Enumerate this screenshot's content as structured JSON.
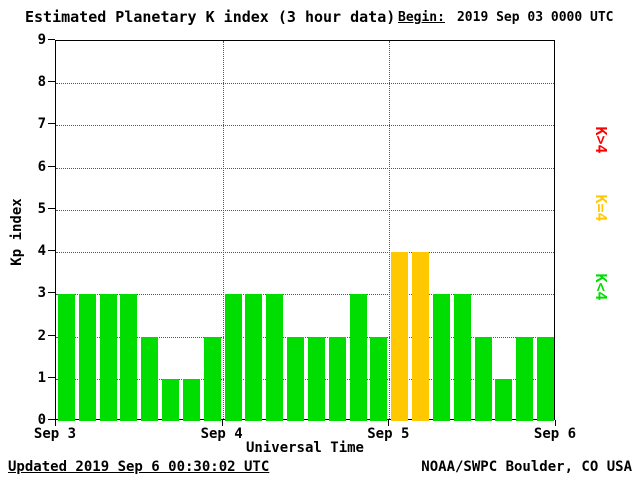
{
  "title": "Estimated Planetary K index (3 hour data)",
  "begin_label": "Begin:",
  "begin_value": "2019 Sep 03 0000 UTC",
  "footer": {
    "updated": "Updated 2019 Sep  6 00:30:02 UTC",
    "attribution": "NOAA/SWPC Boulder, CO USA"
  },
  "chart_data": {
    "type": "bar",
    "title": "Estimated Planetary K index (3 hour data)",
    "xlabel": "Universal Time",
    "ylabel": "Kp index",
    "ylim": [
      0,
      9
    ],
    "yticks": [
      0,
      1,
      2,
      3,
      4,
      5,
      6,
      7,
      8,
      9
    ],
    "x_day_labels": [
      "Sep 3",
      "Sep 4",
      "Sep 5",
      "Sep 6"
    ],
    "interval_hours": 3,
    "values": [
      3,
      3,
      3,
      3,
      2,
      1,
      1,
      2,
      3,
      3,
      3,
      2,
      2,
      2,
      3,
      2,
      4,
      4,
      3,
      3,
      2,
      1,
      2,
      2
    ],
    "colors": {
      "low": "#00dd00",
      "mid": "#ffc800",
      "high": "#ff0000",
      "frame": "#000000",
      "background": "#ffffff"
    },
    "legend": [
      {
        "label": "K>4",
        "color": "#ff0000"
      },
      {
        "label": "K=4",
        "color": "#ffc800"
      },
      {
        "label": "K<4",
        "color": "#00dd00"
      }
    ],
    "grid": "dotted horizontal lines at each Kp integer, dotted vertical lines at day boundaries",
    "legend_position": "right, rotated 90deg"
  }
}
